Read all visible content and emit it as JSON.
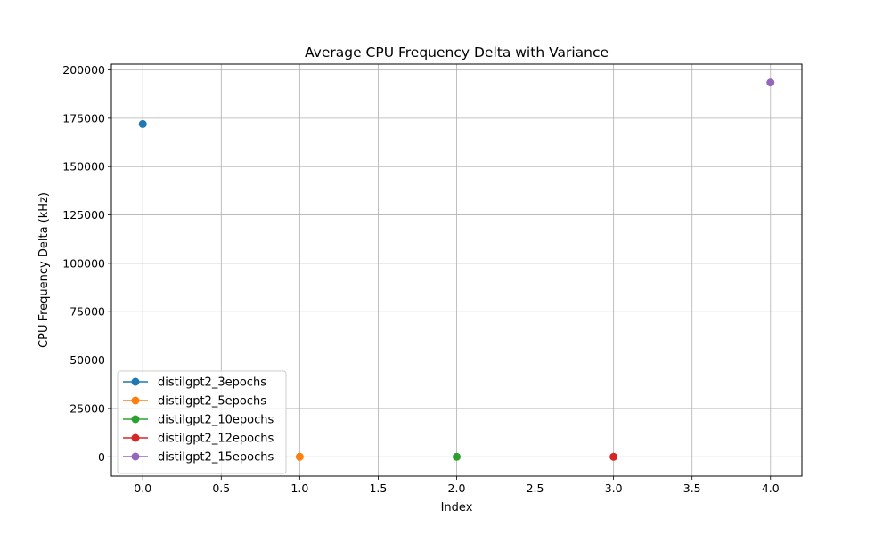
{
  "chart_data": {
    "type": "scatter",
    "title": "Average CPU Frequency Delta with Variance",
    "xlabel": "Index",
    "ylabel": "CPU Frequency Delta (kHz)",
    "xlim": [
      -0.2,
      4.2
    ],
    "ylim": [
      -10000,
      203000
    ],
    "xticks": [
      0.0,
      0.5,
      1.0,
      1.5,
      2.0,
      2.5,
      3.0,
      3.5,
      4.0
    ],
    "xtick_labels": [
      "0.0",
      "0.5",
      "1.0",
      "1.5",
      "2.0",
      "2.5",
      "3.0",
      "3.5",
      "4.0"
    ],
    "yticks": [
      0,
      25000,
      50000,
      75000,
      100000,
      125000,
      150000,
      175000,
      200000
    ],
    "ytick_labels": [
      "0",
      "25000",
      "50000",
      "75000",
      "100000",
      "125000",
      "150000",
      "175000",
      "200000"
    ],
    "grid": true,
    "legend_position": "lower-left",
    "series": [
      {
        "name": "distilgpt2_3epochs",
        "color": "#1f77b4",
        "x": [
          0
        ],
        "y": [
          172000
        ]
      },
      {
        "name": "distilgpt2_5epochs",
        "color": "#ff7f0e",
        "x": [
          1
        ],
        "y": [
          0
        ]
      },
      {
        "name": "distilgpt2_10epochs",
        "color": "#2ca02c",
        "x": [
          2
        ],
        "y": [
          0
        ]
      },
      {
        "name": "distilgpt2_12epochs",
        "color": "#d62728",
        "x": [
          3
        ],
        "y": [
          0
        ]
      },
      {
        "name": "distilgpt2_15epochs",
        "color": "#9467bd",
        "x": [
          4
        ],
        "y": [
          193500
        ]
      }
    ]
  }
}
